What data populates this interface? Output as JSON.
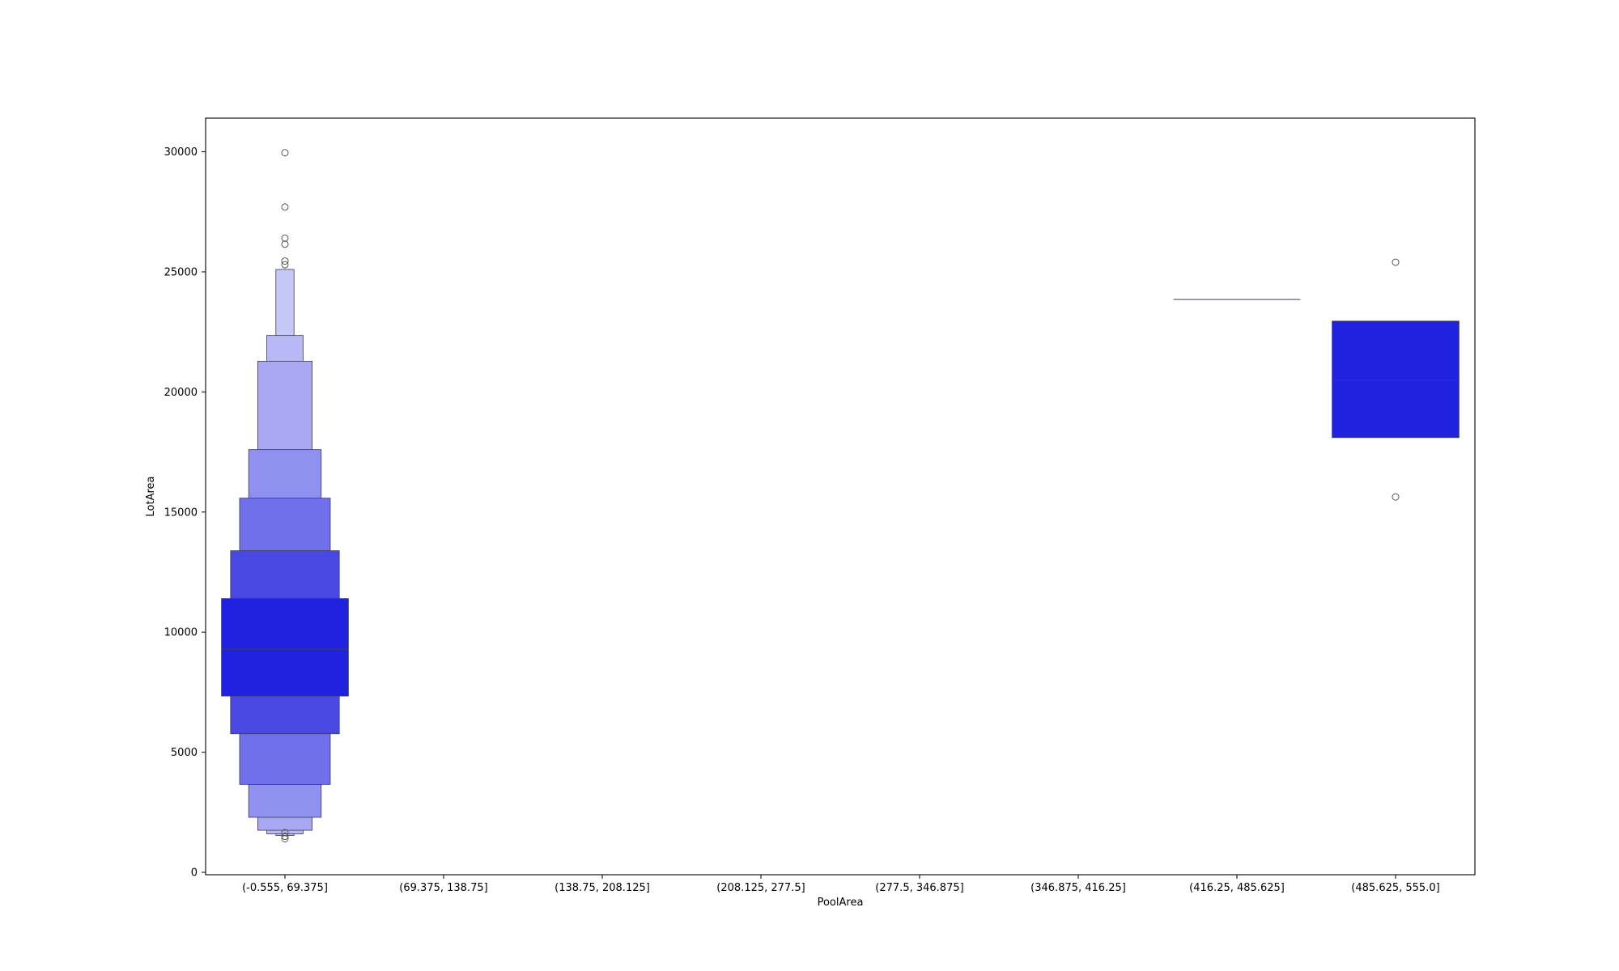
{
  "chart_data": {
    "type": "boxen",
    "xlabel": "PoolArea",
    "ylabel": "LotArea",
    "ylim": [
      -100,
      31400
    ],
    "yticks": [
      0,
      5000,
      10000,
      15000,
      20000,
      25000,
      30000
    ],
    "categories": [
      "(-0.555, 69.375]",
      "(69.375, 138.75]",
      "(138.75, 208.125]",
      "(208.125, 277.5]",
      "(277.5, 346.875]",
      "(346.875, 416.25]",
      "(416.25, 485.625]",
      "(485.625, 555.0]"
    ],
    "colors": {
      "base": "#0000ff",
      "edge": "#3d3d5c",
      "level_fills": [
        "#2121e0",
        "#4848e3",
        "#7070ec",
        "#9090f0",
        "#a8a8f3",
        "#b8b8f6",
        "#c8c8f8"
      ]
    },
    "groups": [
      {
        "category": "(-0.555, 69.375]",
        "median": 9290,
        "boxes": [
          [
            7340,
            11400
          ],
          [
            5770,
            13390
          ],
          [
            3660,
            15580
          ],
          [
            2290,
            17600
          ],
          [
            1750,
            21280
          ],
          [
            1600,
            22350
          ],
          [
            1530,
            25100
          ]
        ],
        "outliers": [
          29960,
          27700,
          26400,
          26150,
          25450,
          25300,
          1650,
          1500,
          1400
        ]
      },
      {
        "category": "(69.375, 138.75]",
        "median": null,
        "boxes": [],
        "outliers": []
      },
      {
        "category": "(138.75, 208.125]",
        "median": null,
        "boxes": [],
        "outliers": []
      },
      {
        "category": "(208.125, 277.5]",
        "median": null,
        "boxes": [],
        "outliers": []
      },
      {
        "category": "(277.5, 346.875]",
        "median": null,
        "boxes": [],
        "outliers": []
      },
      {
        "category": "(346.875, 416.25]",
        "median": null,
        "boxes": [],
        "outliers": []
      },
      {
        "category": "(416.25, 485.625]",
        "median": 23850,
        "boxes": [],
        "outliers": []
      },
      {
        "category": "(485.625, 555.0]",
        "median": 20500,
        "boxes": [
          [
            18100,
            22950
          ]
        ],
        "outliers": [
          25400,
          15630
        ]
      }
    ]
  }
}
